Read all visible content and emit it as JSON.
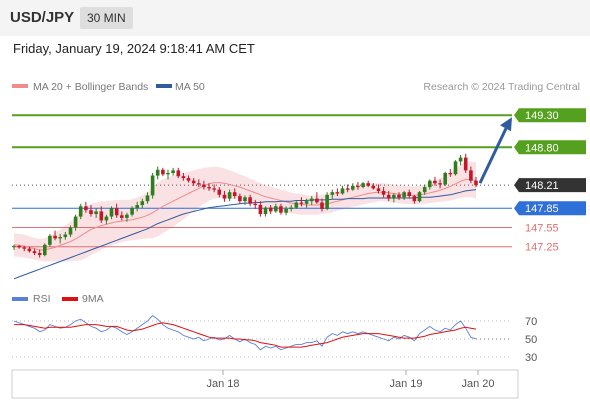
{
  "header": {
    "symbol": "USD/JPY",
    "timeframe": "30 MIN",
    "datetime": "Friday, January 19, 2024 9:18:41 AM CET"
  },
  "legend": [
    {
      "label": "MA 20 + Bollinger Bands",
      "color": "#f28b8b"
    },
    {
      "label": "MA 50",
      "color": "#2e5c9e"
    }
  ],
  "credit": "Research © 2024 Trading Central",
  "chart_data": [
    {
      "type": "candlestick",
      "title": "USD/JPY",
      "price_range": [
        146.7,
        149.6
      ],
      "levels": [
        {
          "value": 149.3,
          "label": "149.30",
          "kind": "target",
          "color": "#55a01e"
        },
        {
          "value": 148.8,
          "label": "148.80",
          "kind": "resistance",
          "color": "#55a01e"
        },
        {
          "value": 148.21,
          "label": "148.21",
          "kind": "last",
          "color": "#333333"
        },
        {
          "value": 147.85,
          "label": "147.85",
          "kind": "pivot",
          "color": "#2e6fd8"
        },
        {
          "value": 147.55,
          "label": "147.55",
          "kind": "support",
          "color": "#e07070"
        },
        {
          "value": 147.25,
          "label": "147.25",
          "kind": "support",
          "color": "#e07070"
        }
      ],
      "arrow": {
        "from": 148.21,
        "to": 149.3,
        "direction": "up",
        "color": "#2e5c9e"
      },
      "x_ticks": [
        "Jan 18",
        "Jan 19",
        "Jan 20"
      ],
      "candles": [
        [
          147.25,
          147.28,
          147.2,
          147.26
        ],
        [
          147.26,
          147.28,
          147.22,
          147.24
        ],
        [
          147.24,
          147.26,
          147.18,
          147.22
        ],
        [
          147.22,
          147.25,
          147.16,
          147.18
        ],
        [
          147.18,
          147.22,
          147.12,
          147.15
        ],
        [
          147.15,
          147.2,
          147.08,
          147.12
        ],
        [
          147.12,
          147.3,
          147.1,
          147.28
        ],
        [
          147.28,
          147.45,
          147.25,
          147.42
        ],
        [
          147.42,
          147.5,
          147.35,
          147.38
        ],
        [
          147.38,
          147.45,
          147.3,
          147.4
        ],
        [
          147.4,
          147.48,
          147.36,
          147.44
        ],
        [
          147.44,
          147.58,
          147.4,
          147.55
        ],
        [
          147.55,
          147.75,
          147.5,
          147.72
        ],
        [
          147.72,
          147.92,
          147.68,
          147.88
        ],
        [
          147.88,
          147.95,
          147.78,
          147.82
        ],
        [
          147.82,
          147.9,
          147.72,
          147.76
        ],
        [
          147.76,
          147.85,
          147.7,
          147.8
        ],
        [
          147.8,
          147.88,
          147.62,
          147.66
        ],
        [
          147.66,
          147.75,
          147.6,
          147.72
        ],
        [
          147.72,
          147.88,
          147.68,
          147.85
        ],
        [
          147.85,
          147.92,
          147.7,
          147.74
        ],
        [
          147.74,
          147.8,
          147.66,
          147.7
        ],
        [
          147.7,
          147.78,
          147.64,
          147.75
        ],
        [
          147.75,
          147.88,
          147.72,
          147.85
        ],
        [
          147.85,
          147.95,
          147.8,
          147.9
        ],
        [
          147.9,
          148.0,
          147.85,
          147.96
        ],
        [
          147.96,
          148.1,
          147.92,
          148.05
        ],
        [
          148.05,
          148.4,
          148.0,
          148.36
        ],
        [
          148.36,
          148.5,
          148.3,
          148.45
        ],
        [
          148.45,
          148.48,
          148.35,
          148.38
        ],
        [
          148.38,
          148.45,
          148.3,
          148.4
        ],
        [
          148.4,
          148.48,
          148.36,
          148.44
        ],
        [
          148.44,
          148.48,
          148.32,
          148.35
        ],
        [
          148.35,
          148.4,
          148.28,
          148.32
        ],
        [
          148.32,
          148.36,
          148.25,
          148.28
        ],
        [
          148.28,
          148.32,
          148.2,
          148.24
        ],
        [
          148.24,
          148.3,
          148.18,
          148.22
        ],
        [
          148.22,
          148.28,
          148.14,
          148.18
        ],
        [
          148.18,
          148.24,
          148.12,
          148.16
        ],
        [
          148.16,
          148.22,
          148.1,
          148.14
        ],
        [
          148.14,
          148.18,
          148.02,
          148.06
        ],
        [
          148.06,
          148.12,
          147.95,
          148.0
        ],
        [
          148.0,
          148.14,
          147.96,
          148.1
        ],
        [
          148.1,
          148.16,
          148.0,
          148.04
        ],
        [
          148.04,
          148.08,
          147.92,
          147.96
        ],
        [
          147.96,
          148.05,
          147.9,
          148.02
        ],
        [
          148.02,
          148.06,
          147.88,
          147.92
        ],
        [
          147.92,
          147.98,
          147.84,
          147.9
        ],
        [
          147.9,
          147.96,
          147.72,
          147.76
        ],
        [
          147.76,
          147.88,
          147.72,
          147.86
        ],
        [
          147.86,
          147.9,
          147.76,
          147.8
        ],
        [
          147.8,
          147.92,
          147.78,
          147.88
        ],
        [
          147.88,
          147.92,
          147.75,
          147.78
        ],
        [
          147.78,
          147.88,
          147.74,
          147.84
        ],
        [
          147.84,
          147.9,
          147.8,
          147.86
        ],
        [
          147.86,
          147.96,
          147.84,
          147.94
        ],
        [
          147.94,
          148.02,
          147.88,
          147.92
        ],
        [
          147.92,
          148.0,
          147.86,
          147.96
        ],
        [
          147.96,
          148.04,
          147.9,
          148.0
        ],
        [
          148.0,
          148.1,
          147.92,
          147.94
        ],
        [
          147.94,
          148.0,
          147.8,
          147.84
        ],
        [
          147.84,
          148.1,
          147.82,
          148.06
        ],
        [
          148.06,
          148.14,
          148.0,
          148.1
        ],
        [
          148.1,
          148.16,
          148.04,
          148.08
        ],
        [
          148.08,
          148.2,
          148.06,
          148.16
        ],
        [
          148.16,
          148.22,
          148.1,
          148.14
        ],
        [
          148.14,
          148.24,
          148.12,
          148.2
        ],
        [
          148.2,
          148.26,
          148.14,
          148.18
        ],
        [
          148.18,
          148.26,
          148.16,
          148.24
        ],
        [
          148.24,
          148.28,
          148.18,
          148.2
        ],
        [
          148.2,
          148.24,
          148.14,
          148.16
        ],
        [
          148.16,
          148.22,
          148.08,
          148.12
        ],
        [
          148.12,
          148.18,
          148.02,
          148.06
        ],
        [
          148.06,
          148.12,
          147.96,
          148.0
        ],
        [
          148.0,
          148.08,
          147.94,
          148.06
        ],
        [
          148.06,
          148.1,
          147.98,
          148.02
        ],
        [
          148.02,
          148.12,
          147.98,
          148.1
        ],
        [
          148.1,
          148.14,
          148.0,
          148.04
        ],
        [
          148.04,
          148.06,
          147.92,
          147.96
        ],
        [
          147.96,
          148.12,
          147.94,
          148.1
        ],
        [
          148.1,
          148.22,
          148.06,
          148.18
        ],
        [
          148.18,
          148.3,
          148.14,
          148.28
        ],
        [
          148.28,
          148.34,
          148.2,
          148.24
        ],
        [
          148.24,
          148.3,
          148.16,
          148.22
        ],
        [
          148.22,
          148.42,
          148.2,
          148.4
        ],
        [
          148.4,
          148.46,
          148.34,
          148.38
        ],
        [
          148.38,
          148.6,
          148.36,
          148.58
        ],
        [
          148.58,
          148.68,
          148.52,
          148.64
        ],
        [
          148.64,
          148.7,
          148.4,
          148.44
        ],
        [
          148.44,
          148.5,
          148.24,
          148.28
        ],
        [
          148.28,
          148.34,
          148.18,
          148.21
        ]
      ],
      "ma20": [
        147.28,
        147.27,
        147.26,
        147.24,
        147.22,
        147.2,
        147.2,
        147.22,
        147.24,
        147.27,
        147.3,
        147.33,
        147.37,
        147.42,
        147.47,
        147.52,
        147.55,
        147.58,
        147.6,
        147.62,
        147.64,
        147.65,
        147.66,
        147.67,
        147.69,
        147.71,
        147.74,
        147.78,
        147.83,
        147.88,
        147.92,
        147.96,
        148.0,
        148.04,
        148.08,
        148.12,
        148.16,
        148.2,
        148.23,
        148.25,
        148.25,
        148.24,
        148.22,
        148.2,
        148.18,
        148.15,
        148.12,
        148.09,
        148.06,
        148.03,
        148.01,
        147.99,
        147.97,
        147.95,
        147.93,
        147.92,
        147.91,
        147.9,
        147.9,
        147.9,
        147.91,
        147.92,
        147.94,
        147.96,
        147.98,
        148.0,
        148.02,
        148.04,
        148.06,
        148.08,
        148.09,
        148.1,
        148.1,
        148.09,
        148.08,
        148.07,
        148.06,
        148.05,
        148.05,
        148.06,
        148.07,
        148.09,
        148.11,
        148.13,
        148.16,
        148.19,
        148.23,
        148.27,
        148.3,
        148.3,
        148.28
      ],
      "bb_width": [
        0.18,
        0.18,
        0.18,
        0.17,
        0.17,
        0.17,
        0.18,
        0.2,
        0.22,
        0.25,
        0.28,
        0.31,
        0.34,
        0.38,
        0.4,
        0.4,
        0.39,
        0.38,
        0.36,
        0.35,
        0.34,
        0.33,
        0.32,
        0.32,
        0.33,
        0.34,
        0.36,
        0.4,
        0.42,
        0.42,
        0.41,
        0.4,
        0.38,
        0.36,
        0.34,
        0.32,
        0.3,
        0.28,
        0.26,
        0.25,
        0.24,
        0.23,
        0.22,
        0.21,
        0.2,
        0.2,
        0.19,
        0.19,
        0.18,
        0.18,
        0.18,
        0.17,
        0.17,
        0.17,
        0.16,
        0.16,
        0.16,
        0.15,
        0.15,
        0.15,
        0.15,
        0.15,
        0.15,
        0.15,
        0.15,
        0.15,
        0.15,
        0.15,
        0.15,
        0.15,
        0.15,
        0.14,
        0.14,
        0.14,
        0.14,
        0.14,
        0.14,
        0.14,
        0.14,
        0.14,
        0.15,
        0.16,
        0.17,
        0.18,
        0.2,
        0.22,
        0.24,
        0.26,
        0.28,
        0.28,
        0.28
      ],
      "ma50": [
        146.75,
        146.78,
        146.81,
        146.84,
        146.87,
        146.9,
        146.93,
        146.96,
        146.99,
        147.02,
        147.05,
        147.08,
        147.11,
        147.14,
        147.17,
        147.2,
        147.23,
        147.26,
        147.29,
        147.32,
        147.35,
        147.38,
        147.41,
        147.44,
        147.47,
        147.5,
        147.53,
        147.57,
        147.61,
        147.64,
        147.67,
        147.7,
        147.73,
        147.76,
        147.78,
        147.8,
        147.82,
        147.84,
        147.86,
        147.87,
        147.88,
        147.89,
        147.9,
        147.91,
        147.92,
        147.93,
        147.93,
        147.94,
        147.94,
        147.95,
        147.95,
        147.95,
        147.96,
        147.96,
        147.96,
        147.97,
        147.97,
        147.97,
        147.98,
        147.98,
        147.98,
        147.98,
        147.99,
        147.99,
        147.99,
        148.0,
        148.0,
        148.0,
        148.0,
        148.01,
        148.01,
        148.01,
        148.01,
        148.01,
        148.01,
        148.01,
        148.01,
        148.01,
        148.01,
        148.02,
        148.02,
        148.02,
        148.03,
        148.04,
        148.05,
        148.06,
        148.08,
        148.1,
        148.12,
        148.13,
        148.14
      ]
    },
    {
      "type": "line",
      "title": "RSI",
      "series": [
        {
          "name": "RSI",
          "color": "#5b7fd4",
          "values": [
            70,
            68,
            66,
            64,
            62,
            58,
            60,
            66,
            64,
            62,
            63,
            66,
            70,
            72,
            68,
            64,
            62,
            58,
            60,
            64,
            62,
            58,
            55,
            58,
            62,
            66,
            70,
            76,
            72,
            66,
            62,
            60,
            58,
            54,
            52,
            50,
            52,
            48,
            50,
            52,
            49,
            50,
            54,
            50,
            47,
            50,
            46,
            44,
            38,
            42,
            40,
            42,
            38,
            40,
            42,
            44,
            44,
            46,
            46,
            48,
            42,
            52,
            56,
            54,
            58,
            56,
            58,
            56,
            58,
            56,
            54,
            52,
            50,
            48,
            52,
            50,
            54,
            52,
            48,
            56,
            60,
            64,
            60,
            58,
            62,
            60,
            66,
            70,
            62,
            52,
            50
          ]
        },
        {
          "name": "9MA",
          "color": "#e01010",
          "values": [
            66,
            66,
            66,
            65,
            64,
            63,
            62,
            63,
            63,
            63,
            63,
            63,
            64,
            65,
            66,
            66,
            66,
            65,
            64,
            64,
            64,
            62,
            60,
            59,
            60,
            61,
            63,
            65,
            67,
            68,
            67,
            66,
            64,
            62,
            60,
            58,
            56,
            54,
            52,
            51,
            51,
            51,
            51,
            50,
            50,
            49,
            49,
            48,
            46,
            45,
            44,
            43,
            41,
            41,
            41,
            41,
            41,
            42,
            43,
            44,
            45,
            46,
            48,
            50,
            52,
            53,
            54,
            55,
            56,
            56,
            56,
            56,
            55,
            54,
            53,
            52,
            51,
            51,
            51,
            52,
            53,
            55,
            56,
            57,
            58,
            59,
            60,
            62,
            63,
            62,
            61
          ]
        }
      ],
      "y_ticks": [
        70,
        50,
        30
      ],
      "ylim": [
        20,
        80
      ]
    }
  ]
}
